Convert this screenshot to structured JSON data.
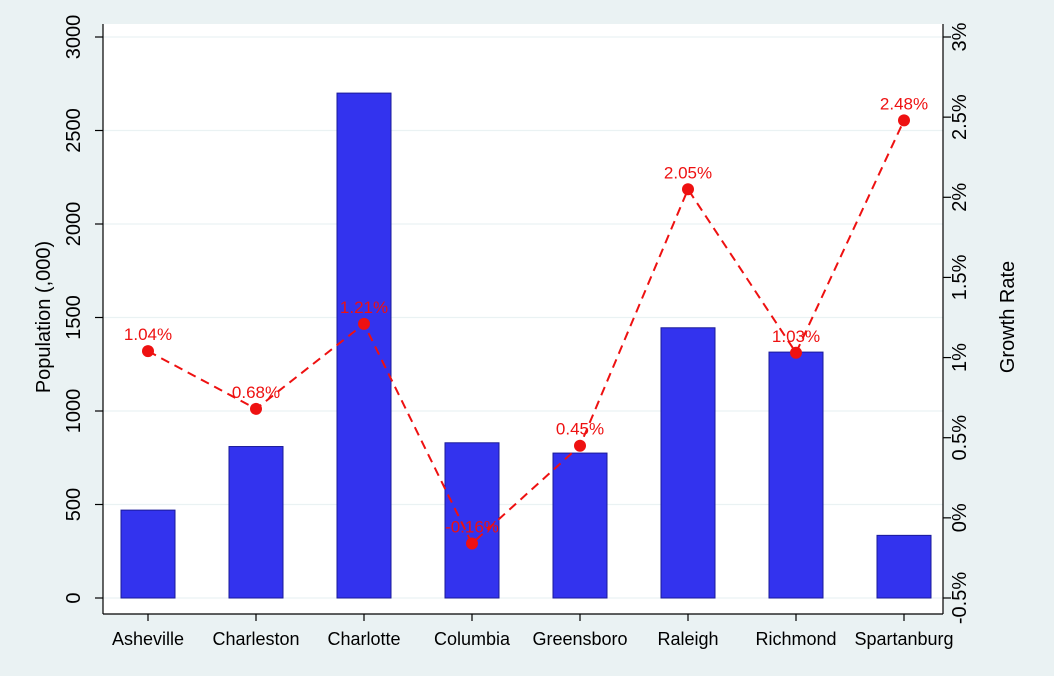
{
  "chart_data": {
    "type": "bar",
    "categories": [
      "Asheville",
      "Charleston",
      "Charlotte",
      "Columbia",
      "Greensboro",
      "Raleigh",
      "Richmond",
      "Spartanburg"
    ],
    "series": [
      {
        "kind": "bar",
        "axis": "left",
        "values": [
          470,
          810,
          2700,
          830,
          775,
          1445,
          1315,
          335
        ],
        "color": "#3333ee"
      },
      {
        "kind": "line",
        "axis": "right",
        "values": [
          1.04,
          0.68,
          1.21,
          -0.16,
          0.45,
          2.05,
          1.03,
          2.48
        ],
        "labels": [
          "1.04%",
          "0.68%",
          "1.21%",
          "-0.16%",
          "0.45%",
          "2.05%",
          "1.03%",
          "2.48%"
        ],
        "color": "#ee1111",
        "line_style": "dashed"
      }
    ],
    "ylabel": "Population (,000)",
    "y2label": "Growth Rate",
    "ylim": [
      0,
      3000
    ],
    "y2lim": [
      -0.5,
      3
    ],
    "yticks": [
      0,
      500,
      1000,
      1500,
      2000,
      2500,
      3000
    ],
    "yticklabels": [
      "0",
      "500",
      "1000",
      "1500",
      "2000",
      "2500",
      "3000"
    ],
    "y2ticks": [
      -0.5,
      0,
      0.5,
      1,
      1.5,
      2,
      2.5,
      3
    ],
    "y2ticklabels": [
      "-0.5%",
      "0%",
      "0.5%",
      "1%",
      "1.5%",
      "2%",
      "2.5%",
      "3%"
    ],
    "grid": true
  }
}
